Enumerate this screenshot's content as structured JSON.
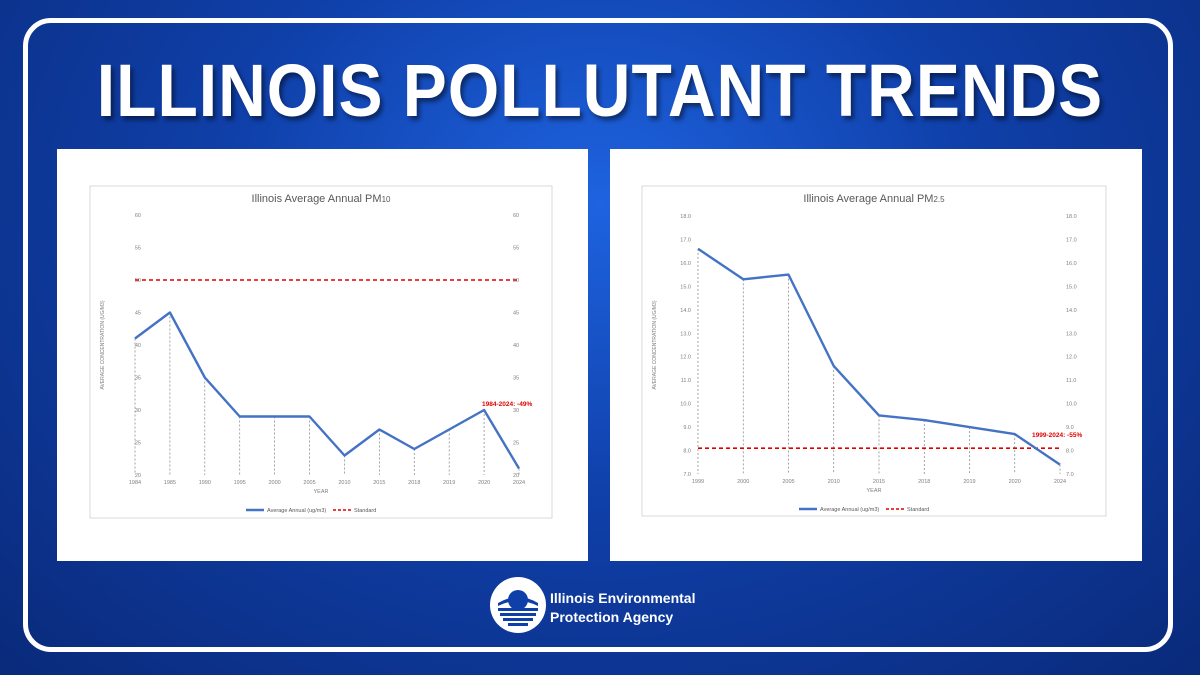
{
  "headline": "ILLINOIS POLLUTANT TRENDS",
  "colors": {
    "series": "#4472c4",
    "standard": "#e00000",
    "annotation": "#e00000"
  },
  "logo": {
    "line1": "Illinois Environmental",
    "line2": "Protection Agency"
  },
  "chart_data": [
    {
      "type": "line",
      "title_main": "Illinois Average Annual PM",
      "title_sub": "10",
      "xlabel": "YEAR",
      "ylabel": "AVERAGE CONCENTRATION (UG/M3)",
      "categories": [
        "1984",
        "1985",
        "1990",
        "1995",
        "2000",
        "2005",
        "2010",
        "2015",
        "2018",
        "2019",
        "2020",
        "2024"
      ],
      "series": [
        {
          "name": "Average Annual (ug/m3)",
          "values": [
            41,
            45,
            35,
            29,
            29,
            29,
            23,
            27,
            24,
            27,
            30,
            21
          ]
        },
        {
          "name": "Standard",
          "values": [
            50,
            50,
            50,
            50,
            50,
            50,
            50,
            50,
            50,
            50,
            50,
            50
          ]
        }
      ],
      "ylim": [
        20,
        60
      ],
      "yticks": [
        "20",
        "25",
        "30",
        "35",
        "40",
        "45",
        "50",
        "55",
        "60"
      ],
      "grid": "vertical drop lines",
      "legend": "bottom",
      "annotation": {
        "text": "1984-2024: -49%",
        "category": "2020",
        "value": 30
      }
    },
    {
      "type": "line",
      "title_main": "Illinois Average Annual PM",
      "title_sub": "2.5",
      "xlabel": "YEAR",
      "ylabel": "AVERAGE CONCENTRATION (UG/M3)",
      "categories": [
        "1999",
        "2000",
        "2005",
        "2010",
        "2015",
        "2018",
        "2019",
        "2020",
        "2024"
      ],
      "series": [
        {
          "name": "Average Annual (ug/m3)",
          "values": [
            16.6,
            15.3,
            15.5,
            11.6,
            9.5,
            9.3,
            9.0,
            8.7,
            7.4
          ]
        },
        {
          "name": "Standard",
          "values": [
            8.1,
            8.1,
            8.1,
            8.1,
            8.1,
            8.1,
            8.1,
            8.1,
            8.1
          ]
        }
      ],
      "ylim": [
        7,
        18
      ],
      "yticks": [
        "7.0",
        "8.0",
        "9.0",
        "10.0",
        "11.0",
        "12.0",
        "13.0",
        "14.0",
        "15.0",
        "16.0",
        "17.0",
        "18.0"
      ],
      "grid": "vertical drop lines",
      "legend": "bottom",
      "annotation": {
        "text": "1999-2024: -55%",
        "category": "2020",
        "value": 8.7
      }
    }
  ]
}
